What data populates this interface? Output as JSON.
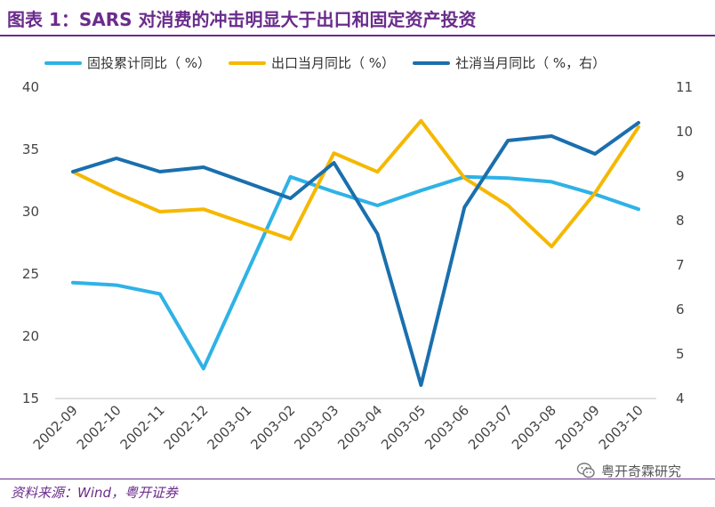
{
  "title": "图表 1：SARS 对消费的冲击明显大于出口和固定资产投资",
  "source": "资料来源：Wind，粤开证券",
  "watermark": "粤开奇霖研究",
  "watermark_icon": "wechat-icon",
  "colors": {
    "title": "#6a2c8c",
    "fai": "#2fb2e6",
    "export": "#f5b800",
    "retail": "#1a6fae"
  },
  "chart_data": {
    "type": "line",
    "x": [
      "2002-09",
      "2002-10",
      "2002-11",
      "2002-12",
      "2003-01",
      "2003-02",
      "2003-03",
      "2003-04",
      "2003-05",
      "2003-06",
      "2003-07",
      "2003-08",
      "2003-09",
      "2003-10"
    ],
    "left_axis": {
      "ylim": [
        15,
        40
      ],
      "ticks": [
        40,
        35,
        30,
        25,
        20,
        15
      ]
    },
    "right_axis": {
      "ylim": [
        4,
        11
      ],
      "ticks": [
        11,
        10,
        9,
        8,
        7,
        6,
        5,
        4
      ]
    },
    "series": [
      {
        "name": "固投累计同比（  %）",
        "axis": "left",
        "color": "#2fb2e6",
        "values": [
          24.3,
          24.1,
          23.4,
          17.4,
          null,
          32.8,
          31.6,
          30.5,
          31.7,
          32.8,
          32.7,
          32.4,
          31.4,
          30.2
        ]
      },
      {
        "name": "出口当月同比（  %）",
        "axis": "left",
        "color": "#f5b800",
        "values": [
          33.2,
          31.5,
          30.0,
          30.2,
          null,
          27.8,
          34.7,
          33.2,
          37.3,
          32.7,
          30.5,
          27.2,
          31.5,
          36.8
        ]
      },
      {
        "name": "社消当月同比（  %，右）",
        "axis": "right",
        "color": "#1a6fae",
        "values": [
          9.1,
          9.4,
          9.1,
          9.2,
          null,
          8.5,
          9.3,
          7.7,
          4.3,
          8.3,
          9.8,
          9.9,
          9.5,
          10.2
        ]
      }
    ]
  }
}
